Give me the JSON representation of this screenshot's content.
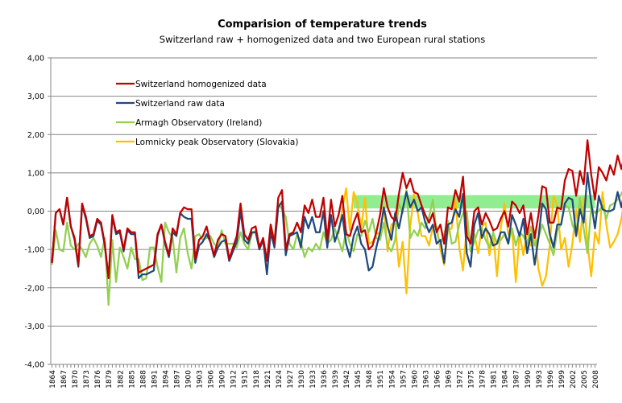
{
  "chart_data": {
    "type": "line",
    "title": "Comparision of temperature trends",
    "subtitle": "Switzerland raw + homogenized data and two European rural stations",
    "xlabel": "",
    "ylabel": "",
    "ylim": [
      -4,
      4
    ],
    "yticks": [
      4,
      3,
      2,
      1,
      0,
      -1,
      -2,
      -3,
      -4
    ],
    "ytick_labels": [
      "4,00",
      "3,00",
      "2,00",
      "1,00",
      "0,00",
      "-1,00",
      "-2,00",
      "-3,00",
      "-4,00"
    ],
    "x_start": 1864,
    "x_end": 2008,
    "xtick_labels": [
      "1864",
      "1867",
      "1870",
      "1873",
      "1876",
      "1879",
      "1882",
      "1885",
      "1888",
      "1891",
      "1894",
      "1897",
      "1900",
      "1903",
      "1906",
      "1909",
      "1912",
      "1915",
      "1918",
      "1921",
      "1924",
      "1927",
      "1930",
      "1933",
      "1936",
      "1939",
      "1942",
      "1945",
      "1948",
      "1951",
      "1954",
      "1957",
      "1960",
      "1963",
      "1966",
      "1969",
      "1972",
      "1975",
      "1978",
      "1981",
      "1984",
      "1987",
      "1990",
      "1993",
      "1996",
      "1999",
      "2002",
      "2005",
      "2008"
    ],
    "grid": true,
    "legend_position": "top-left",
    "band": {
      "x_from": 1944,
      "x_to": 2008,
      "y_from": 0.07,
      "y_to": 0.42,
      "color": "#90ee90"
    },
    "series": [
      {
        "name": "Switzerland homogenized data",
        "color": "#c00000",
        "start_year": 1864,
        "values": [
          -1.35,
          -0.05,
          0.05,
          -0.35,
          0.35,
          -0.4,
          -0.7,
          -1.4,
          0.2,
          -0.15,
          -0.65,
          -0.6,
          -0.2,
          -0.3,
          -0.85,
          -1.75,
          -0.1,
          -0.55,
          -0.5,
          -1.0,
          -0.45,
          -0.55,
          -0.55,
          -1.6,
          -1.55,
          -1.5,
          -1.45,
          -1.4,
          -0.6,
          -0.35,
          -0.8,
          -1.15,
          -0.45,
          -0.6,
          -0.05,
          0.1,
          0.05,
          0.05,
          -1.25,
          -0.75,
          -0.65,
          -0.4,
          -0.8,
          -1.15,
          -0.75,
          -0.6,
          -0.65,
          -1.25,
          -0.95,
          -0.65,
          0.2,
          -0.6,
          -0.75,
          -0.45,
          -0.4,
          -0.95,
          -0.7,
          -1.3,
          -0.35,
          -0.85,
          0.35,
          0.55,
          -1.0,
          -0.6,
          -0.55,
          -0.3,
          -0.55,
          0.15,
          -0.05,
          0.3,
          -0.15,
          -0.15,
          0.35,
          -0.75,
          0.3,
          -0.4,
          -0.1,
          0.4,
          -0.6,
          -0.65,
          -0.3,
          -0.05,
          -0.55,
          -0.5,
          -1.0,
          -0.9,
          -0.55,
          -0.1,
          0.6,
          0.1,
          -0.15,
          -0.25,
          0.45,
          1.0,
          0.6,
          0.85,
          0.5,
          0.45,
          0.15,
          -0.1,
          -0.3,
          -0.05,
          -0.55,
          -0.35,
          -0.85,
          0.1,
          0.05,
          0.55,
          0.25,
          0.9,
          -0.65,
          -0.85,
          0.0,
          0.1,
          -0.35,
          -0.05,
          -0.25,
          -0.5,
          -0.45,
          -0.2,
          0.0,
          -0.4,
          0.25,
          0.15,
          -0.05,
          0.15,
          -0.6,
          -0.05,
          -0.7,
          -0.1,
          0.65,
          0.6,
          -0.3,
          -0.3,
          0.1,
          0.05,
          0.8,
          1.1,
          1.05,
          0.4,
          1.05,
          0.7,
          1.85,
          0.95,
          0.3,
          1.15,
          1.0,
          0.8,
          1.2,
          0.95,
          1.45,
          1.1,
          1.55,
          1.7,
          0.9,
          0.55,
          1.35,
          1.5,
          1.05
        ]
      },
      {
        "name": "Switzerland raw data",
        "color": "#1f497d",
        "start_year": 1864,
        "values": [
          -1.35,
          -0.05,
          0.05,
          -0.35,
          0.35,
          -0.4,
          -0.75,
          -1.45,
          0.15,
          -0.2,
          -0.7,
          -0.65,
          -0.25,
          -0.35,
          -0.9,
          -1.75,
          -0.15,
          -0.6,
          -0.55,
          -1.05,
          -0.5,
          -0.6,
          -0.6,
          -1.75,
          -1.65,
          -1.65,
          -1.6,
          -1.55,
          -0.65,
          -0.35,
          -0.85,
          -1.2,
          -0.55,
          -0.65,
          -0.05,
          -0.15,
          -0.2,
          -0.2,
          -1.35,
          -0.9,
          -0.8,
          -0.6,
          -0.8,
          -1.2,
          -0.95,
          -0.8,
          -0.75,
          -1.3,
          -1.05,
          -0.8,
          0.0,
          -0.75,
          -0.85,
          -0.55,
          -0.55,
          -1.0,
          -0.75,
          -1.65,
          -0.55,
          -0.95,
          0.1,
          0.25,
          -1.15,
          -0.65,
          -0.6,
          -0.55,
          -0.95,
          -0.15,
          -0.45,
          -0.15,
          -0.55,
          -0.55,
          0.0,
          -0.95,
          -0.1,
          -0.8,
          -0.5,
          -0.1,
          -0.85,
          -1.2,
          -0.65,
          -0.4,
          -0.85,
          -1.0,
          -1.55,
          -1.45,
          -0.95,
          -0.55,
          0.1,
          -0.4,
          -0.75,
          -0.05,
          -0.45,
          0.05,
          0.5,
          0.1,
          0.3,
          0.0,
          0.1,
          -0.3,
          -0.55,
          -0.35,
          -0.85,
          -0.75,
          -1.35,
          -0.35,
          -0.3,
          0.05,
          -0.15,
          0.45,
          -1.1,
          -1.45,
          -0.35,
          -0.05,
          -0.7,
          -0.45,
          -0.6,
          -0.9,
          -0.85,
          -0.55,
          -0.55,
          -0.85,
          -0.1,
          -0.35,
          -0.65,
          -0.2,
          -1.1,
          -0.6,
          -1.4,
          -0.7,
          0.2,
          0.05,
          -0.6,
          -0.95,
          -0.35,
          -0.35,
          0.2,
          0.35,
          0.3,
          -0.65,
          0.05,
          -0.3,
          1.0,
          0.2,
          -0.45,
          0.4,
          0.05,
          0.0,
          0.0,
          0.05,
          0.5,
          0.1,
          0.6,
          0.75,
          0.15,
          -0.3,
          0.35,
          0.65,
          0.3
        ]
      },
      {
        "name": "Armagh Observatory (Ireland)",
        "color": "#92d050",
        "start_year": 1864,
        "values": [
          -1.4,
          -0.5,
          -1.0,
          -1.05,
          -0.3,
          -0.9,
          -1.0,
          -0.85,
          -1.0,
          -1.2,
          -0.85,
          -0.7,
          -0.9,
          -1.2,
          -0.7,
          -2.45,
          -0.75,
          -1.85,
          -0.95,
          -1.2,
          -1.5,
          -0.95,
          -1.25,
          -1.25,
          -1.8,
          -1.75,
          -0.95,
          -0.95,
          -1.45,
          -1.85,
          -0.3,
          -0.55,
          -0.7,
          -1.6,
          -0.7,
          -0.45,
          -1.1,
          -1.5,
          -0.65,
          -0.6,
          -0.75,
          -0.7,
          -0.65,
          -0.85,
          -0.95,
          -0.5,
          -0.85,
          -0.85,
          -0.85,
          -0.95,
          -0.55,
          -0.85,
          -1.0,
          -0.6,
          -0.5,
          -0.9,
          -0.75,
          -1.3,
          -0.35,
          -0.75,
          0.2,
          0.05,
          -0.15,
          -0.85,
          -1.0,
          -0.6,
          -0.8,
          -1.2,
          -0.95,
          -1.05,
          -0.85,
          -1.0,
          -0.55,
          -0.85,
          -0.75,
          -0.45,
          -0.75,
          -1.05,
          -0.5,
          -0.85,
          -1.05,
          -0.6,
          -0.65,
          -0.25,
          -0.55,
          -0.2,
          -0.7,
          -0.75,
          -0.3,
          -0.9,
          -1.05,
          -0.75,
          0.2,
          -0.05,
          0.55,
          -0.7,
          -0.5,
          -0.65,
          -0.3,
          -0.45,
          -0.15,
          0.3,
          -0.55,
          -0.85,
          -0.6,
          -0.25,
          -0.85,
          -0.8,
          -0.35,
          -0.05,
          0.0,
          -1.05,
          -0.8,
          -0.5,
          -0.45,
          -0.75,
          -0.95,
          -0.55,
          -0.85,
          -0.75,
          -0.6,
          -0.85,
          -0.45,
          -0.9,
          -0.55,
          -0.65,
          -0.85,
          -0.4,
          -0.9,
          -0.7,
          -0.35,
          -0.6,
          -0.85,
          -1.15,
          -0.5,
          -0.35,
          0.15,
          0.1,
          -0.35,
          -0.6,
          0.35,
          -0.45,
          -1.1,
          0.1,
          -0.05,
          0.0,
          0.15,
          -0.2,
          0.15,
          0.2,
          0.3,
          0.45,
          0.65,
          0.35,
          0.55,
          0.6,
          -0.15
        ]
      },
      {
        "name": "Lomnicky peak Observatory (Slovakia)",
        "color": "#ffc000",
        "start_year": 1940,
        "values": [
          -0.6,
          0.05,
          0.6,
          -0.5,
          0.5,
          0.2,
          -0.45,
          0.35,
          -0.85,
          -0.8,
          -0.6,
          -0.55,
          0.15,
          -1.05,
          -0.35,
          -0.3,
          -1.45,
          -0.8,
          -2.15,
          -0.4,
          0.45,
          -0.05,
          -0.65,
          -0.65,
          -0.9,
          -0.4,
          -0.4,
          -1.0,
          -1.4,
          -0.5,
          -0.45,
          0.3,
          -0.95,
          -1.55,
          -0.4,
          -0.85,
          -0.6,
          -1.1,
          -0.4,
          -0.3,
          -1.15,
          -0.55,
          -1.7,
          -0.45,
          0.2,
          -0.6,
          -0.5,
          -1.85,
          -0.6,
          -1.15,
          -0.5,
          -0.9,
          -0.5,
          -1.5,
          -1.95,
          -1.7,
          -0.9,
          0.4,
          0.15,
          -1.0,
          -0.7,
          -1.45,
          -0.85,
          0.05,
          -0.8,
          0.35,
          -0.85,
          -1.7,
          -0.55,
          -0.85,
          0.5,
          -0.35,
          -0.95,
          -0.8,
          -0.6,
          -0.2,
          0.45,
          -0.55,
          -0.25,
          -0.2,
          0.2,
          0.15,
          0.5,
          -0.35,
          -0.6,
          -0.55,
          0.55,
          0.35,
          0.4,
          0.35
        ]
      }
    ]
  }
}
